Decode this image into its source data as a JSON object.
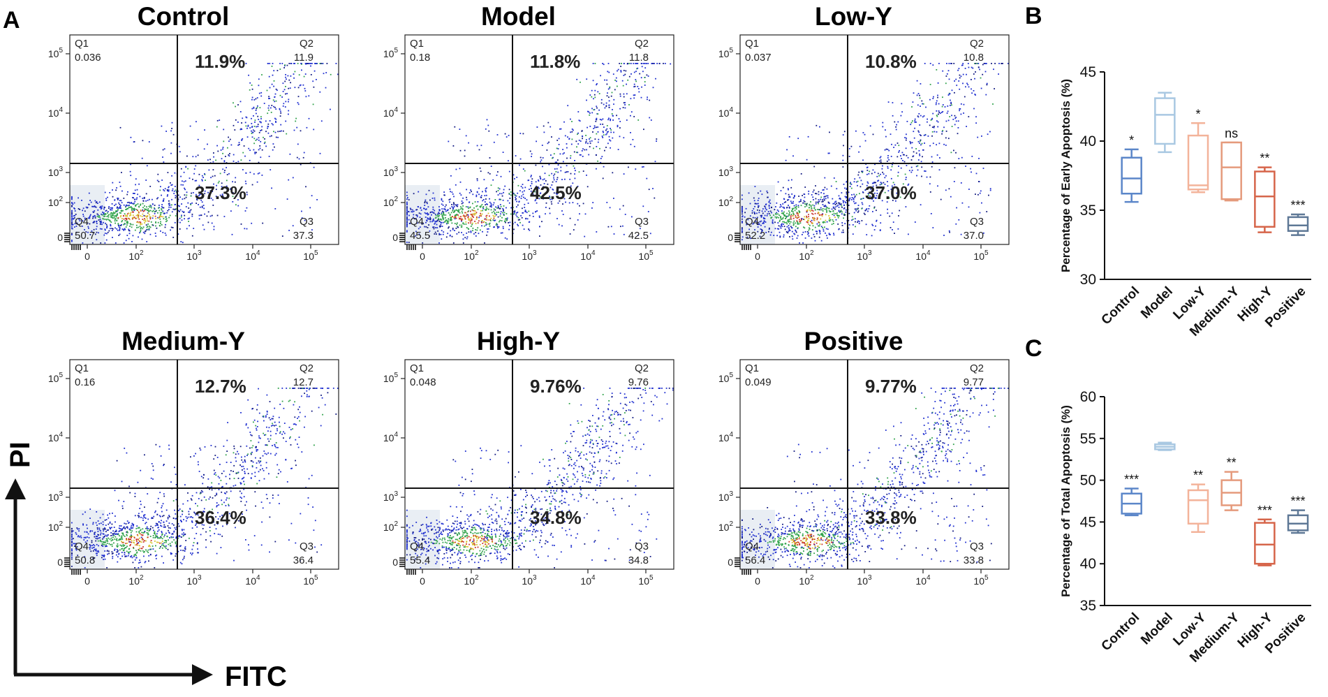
{
  "panel_labels": {
    "a": "A",
    "b": "B",
    "c": "C"
  },
  "axes": {
    "x_label": "FITC",
    "y_label": "PI"
  },
  "colors": {
    "control": "#5b86c9",
    "model": "#a9c8e2",
    "lowy": "#f3b39a",
    "mediumy": "#e59a7c",
    "highy": "#d6654a",
    "positive": "#5e7896",
    "dot_blue": "#1f2fd0",
    "dot_dark": "#101880",
    "dot_green": "#2fa24a",
    "dot_yellow": "#d8c22a",
    "dot_red": "#c8322a"
  },
  "chart_data": [
    {
      "type": "scatter",
      "subtype": "flow-cytometry-quadrant",
      "title": "Control",
      "x_ticks": [
        "0",
        "10^2",
        "10^3",
        "10^4",
        "10^5"
      ],
      "y_ticks": [
        "0",
        "10^2",
        "10^3",
        "10^4",
        "10^5"
      ],
      "quadrants": {
        "q1": {
          "name": "Q1",
          "value": "0.036"
        },
        "q2": {
          "name": "Q2",
          "value": "11.9"
        },
        "q3": {
          "name": "Q3",
          "value": "37.3"
        },
        "q4": {
          "name": "Q4",
          "value": "50.7"
        }
      },
      "late_pct": "11.9%",
      "early_pct": "37.3%"
    },
    {
      "type": "scatter",
      "subtype": "flow-cytometry-quadrant",
      "title": "Model",
      "x_ticks": [
        "0",
        "10^2",
        "10^3",
        "10^4",
        "10^5"
      ],
      "y_ticks": [
        "0",
        "10^2",
        "10^3",
        "10^4",
        "10^5"
      ],
      "quadrants": {
        "q1": {
          "name": "Q1",
          "value": "0.18"
        },
        "q2": {
          "name": "Q2",
          "value": "11.8"
        },
        "q3": {
          "name": "Q3",
          "value": "42.5"
        },
        "q4": {
          "name": "Q4",
          "value": "45.5"
        }
      },
      "late_pct": "11.8%",
      "early_pct": "42.5%"
    },
    {
      "type": "scatter",
      "subtype": "flow-cytometry-quadrant",
      "title": "Low-Y",
      "x_ticks": [
        "0",
        "10^2",
        "10^3",
        "10^4",
        "10^5"
      ],
      "y_ticks": [
        "0",
        "10^2",
        "10^3",
        "10^4",
        "10^5"
      ],
      "quadrants": {
        "q1": {
          "name": "Q1",
          "value": "0.037"
        },
        "q2": {
          "name": "Q2",
          "value": "10.8"
        },
        "q3": {
          "name": "Q3",
          "value": "37.0"
        },
        "q4": {
          "name": "Q4",
          "value": "52.2"
        }
      },
      "late_pct": "10.8%",
      "early_pct": "37.0%"
    },
    {
      "type": "scatter",
      "subtype": "flow-cytometry-quadrant",
      "title": "Medium-Y",
      "x_ticks": [
        "0",
        "10^2",
        "10^3",
        "10^4",
        "10^5"
      ],
      "y_ticks": [
        "0",
        "10^2",
        "10^3",
        "10^4",
        "10^5"
      ],
      "quadrants": {
        "q1": {
          "name": "Q1",
          "value": "0.16"
        },
        "q2": {
          "name": "Q2",
          "value": "12.7"
        },
        "q3": {
          "name": "Q3",
          "value": "36.4"
        },
        "q4": {
          "name": "Q4",
          "value": "50.8"
        }
      },
      "late_pct": "12.7%",
      "early_pct": "36.4%"
    },
    {
      "type": "scatter",
      "subtype": "flow-cytometry-quadrant",
      "title": "High-Y",
      "x_ticks": [
        "0",
        "10^2",
        "10^3",
        "10^4",
        "10^5"
      ],
      "y_ticks": [
        "0",
        "10^2",
        "10^3",
        "10^4",
        "10^5"
      ],
      "quadrants": {
        "q1": {
          "name": "Q1",
          "value": "0.048"
        },
        "q2": {
          "name": "Q2",
          "value": "9.76"
        },
        "q3": {
          "name": "Q3",
          "value": "34.8"
        },
        "q4": {
          "name": "Q4",
          "value": "55.4"
        }
      },
      "late_pct": "9.76%",
      "early_pct": "34.8%"
    },
    {
      "type": "scatter",
      "subtype": "flow-cytometry-quadrant",
      "title": "Positive",
      "x_ticks": [
        "0",
        "10^2",
        "10^3",
        "10^4",
        "10^5"
      ],
      "y_ticks": [
        "0",
        "10^2",
        "10^3",
        "10^4",
        "10^5"
      ],
      "quadrants": {
        "q1": {
          "name": "Q1",
          "value": "0.049"
        },
        "q2": {
          "name": "Q2",
          "value": "9.77"
        },
        "q3": {
          "name": "Q3",
          "value": "33.8"
        },
        "q4": {
          "name": "Q4",
          "value": "56.4"
        }
      },
      "late_pct": "9.77%",
      "early_pct": "33.8%"
    },
    {
      "type": "box",
      "panel": "B",
      "ylabel": "Percentage of Early Apoptosis (%)",
      "ylim": [
        30,
        45
      ],
      "yticks": [
        30,
        35,
        40,
        45
      ],
      "categories": [
        "Control",
        "Model",
        "Low-Y",
        "Medium-Y",
        "High-Y",
        "Positive"
      ],
      "boxes": [
        {
          "name": "Control",
          "min": 35.6,
          "q1": 36.2,
          "median": 37.3,
          "q3": 38.8,
          "max": 39.4,
          "sig": "*"
        },
        {
          "name": "Model",
          "min": 39.2,
          "q1": 39.8,
          "median": 41.9,
          "q3": 43.1,
          "max": 43.5,
          "sig": ""
        },
        {
          "name": "Low-Y",
          "min": 36.3,
          "q1": 36.5,
          "median": 36.8,
          "q3": 40.4,
          "max": 41.3,
          "sig": "*"
        },
        {
          "name": "Medium-Y",
          "min": 35.7,
          "q1": 35.8,
          "median": 38.1,
          "q3": 39.9,
          "max": 39.9,
          "sig": "ns"
        },
        {
          "name": "High-Y",
          "min": 33.4,
          "q1": 33.8,
          "median": 36.0,
          "q3": 37.8,
          "max": 38.1,
          "sig": "**"
        },
        {
          "name": "Positive",
          "min": 33.2,
          "q1": 33.5,
          "median": 33.9,
          "q3": 34.5,
          "max": 34.7,
          "sig": "***"
        }
      ]
    },
    {
      "type": "box",
      "panel": "C",
      "ylabel": "Percentage of Total Apoptosis (%)",
      "ylim": [
        35,
        60
      ],
      "yticks": [
        35,
        40,
        45,
        50,
        55,
        60
      ],
      "categories": [
        "Control",
        "Model",
        "Low-Y",
        "Medium-Y",
        "High-Y",
        "Positive"
      ],
      "boxes": [
        {
          "name": "Control",
          "min": 45.8,
          "q1": 46.0,
          "median": 47.2,
          "q3": 48.4,
          "max": 49.0,
          "sig": "***"
        },
        {
          "name": "Model",
          "min": 53.6,
          "q1": 53.7,
          "median": 54.0,
          "q3": 54.3,
          "max": 54.5,
          "sig": ""
        },
        {
          "name": "Low-Y",
          "min": 43.8,
          "q1": 44.8,
          "median": 47.6,
          "q3": 48.8,
          "max": 49.5,
          "sig": "**"
        },
        {
          "name": "Medium-Y",
          "min": 46.4,
          "q1": 47.0,
          "median": 48.5,
          "q3": 50.0,
          "max": 51.0,
          "sig": "**"
        },
        {
          "name": "High-Y",
          "min": 39.8,
          "q1": 40.0,
          "median": 42.3,
          "q3": 44.9,
          "max": 45.3,
          "sig": "***"
        },
        {
          "name": "Positive",
          "min": 43.7,
          "q1": 44.0,
          "median": 44.8,
          "q3": 45.8,
          "max": 46.4,
          "sig": "***"
        }
      ]
    }
  ]
}
